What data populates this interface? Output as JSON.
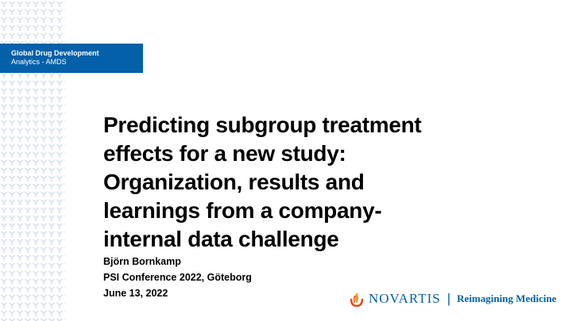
{
  "header": {
    "lines": [
      "Global Drug Development",
      "Analytics - AMDS"
    ]
  },
  "title": {
    "lines": [
      "Predicting subgroup treatment",
      "effects for a new study:",
      "Organization, results and",
      "learnings from a company-",
      "internal data challenge"
    ]
  },
  "details": {
    "lines": [
      "Björn Bornkamp",
      "PSI Conference 2022, Göteborg",
      "June 13, 2022"
    ]
  },
  "logo": {
    "brand": "NOVARTIS",
    "separator": "|",
    "tagline": "Reimagining Medicine"
  }
}
